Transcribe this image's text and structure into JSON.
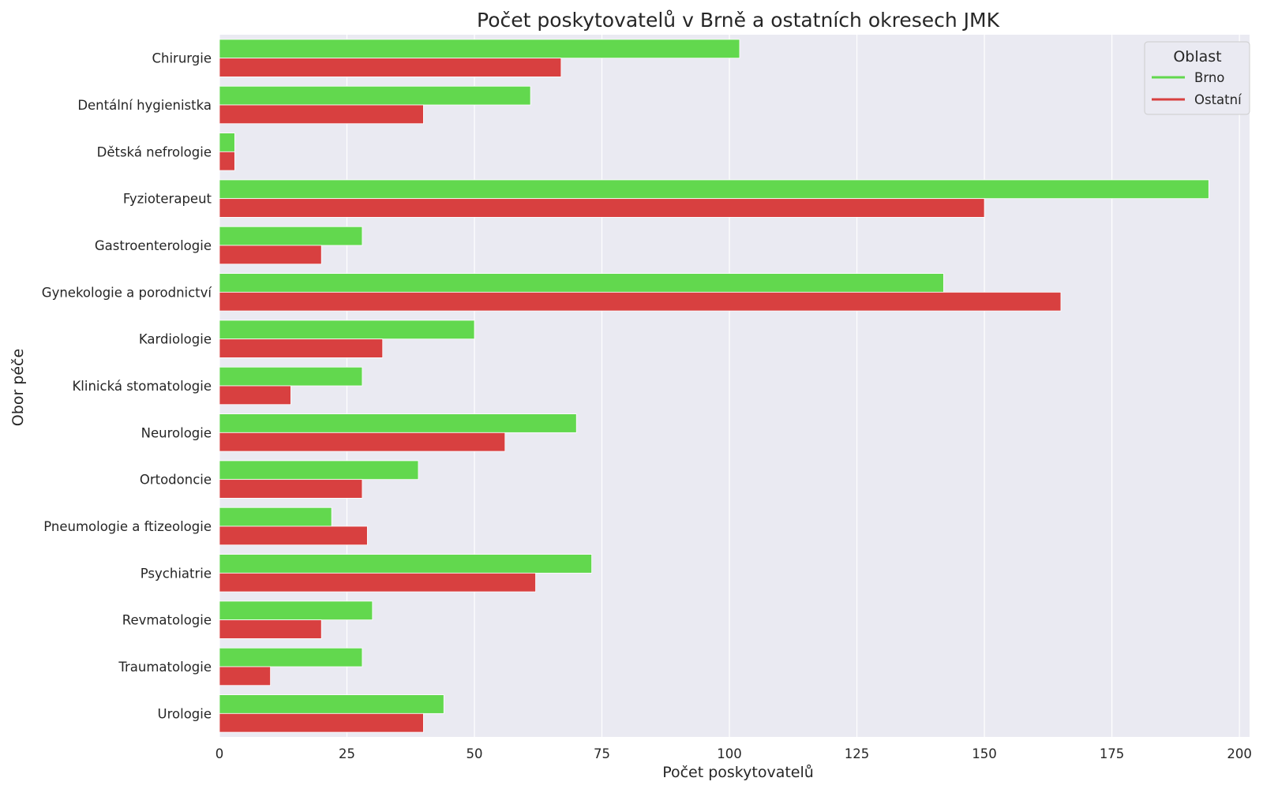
{
  "chart_data": {
    "type": "bar",
    "orientation": "horizontal",
    "title": "Počet poskytovatelů v Brně a ostatních okresech JMK",
    "xlabel": "Počet poskytovatelů",
    "ylabel": "Obor péče",
    "xlim": [
      0,
      202
    ],
    "xticks": [
      0,
      25,
      50,
      75,
      100,
      125,
      150,
      175,
      200
    ],
    "grid": true,
    "background": "#eaeaf2",
    "legend": {
      "title": "Oblast",
      "placement": "top-right"
    },
    "categories": [
      "Chirurgie",
      "Dentální hygienistka",
      "Dětská nefrologie",
      "Fyzioterapeut",
      "Gastroenterologie",
      "Gynekologie a porodnictví",
      "Kardiologie",
      "Klinická stomatologie",
      "Neurologie",
      "Ortodoncie",
      "Pneumologie a ftizeologie",
      "Psychiatrie",
      "Revmatologie",
      "Traumatologie",
      "Urologie"
    ],
    "series": [
      {
        "name": "Brno",
        "color": "#62d84e",
        "values": [
          102,
          61,
          3,
          194,
          28,
          142,
          50,
          28,
          70,
          39,
          22,
          73,
          30,
          28,
          44
        ]
      },
      {
        "name": "Ostatní",
        "color": "#d84040",
        "values": [
          67,
          40,
          3,
          150,
          20,
          165,
          32,
          14,
          56,
          28,
          29,
          62,
          20,
          10,
          40
        ]
      }
    ]
  }
}
